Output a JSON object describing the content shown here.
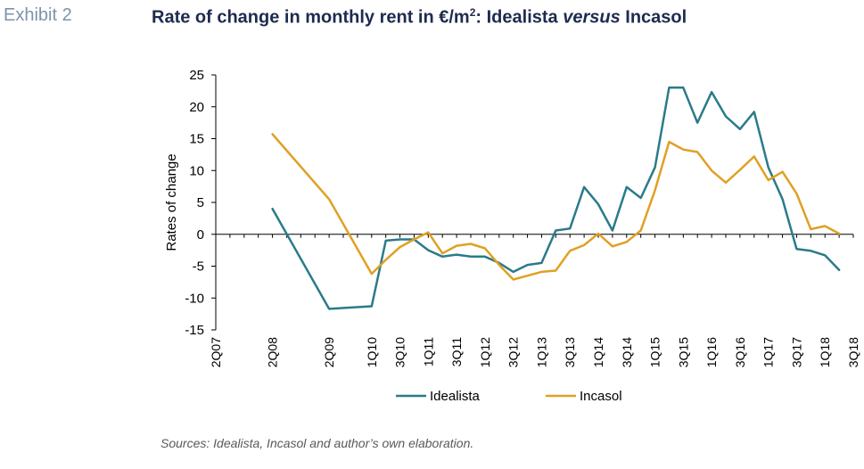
{
  "header": {
    "exhibit": "Exhibit 2",
    "title_pre": "Rate of change in monthly rent in €/m",
    "title_sup": "2",
    "title_mid": ": Idealista ",
    "title_em": "versus",
    "title_post": " Incasol"
  },
  "sources": "Sources: Idealista, Incasol and author’s own elaboration.",
  "chart_data": {
    "type": "line",
    "ylabel": "Rates of change",
    "ylim": [
      -15,
      25
    ],
    "yticks": [
      -15,
      -10,
      -5,
      0,
      5,
      10,
      15,
      20,
      25
    ],
    "tick_labels": [
      "2Q07",
      "2Q08",
      "2Q09",
      "1Q10",
      "3Q10",
      "1Q11",
      "3Q11",
      "1Q12",
      "3Q12",
      "1Q13",
      "3Q13",
      "1Q14",
      "3Q14",
      "1Q15",
      "3Q15",
      "1Q16",
      "3Q16",
      "1Q17",
      "3Q17",
      "1Q18",
      "3Q18"
    ],
    "x": [
      "2Q07",
      "3Q07",
      "4Q07",
      "1Q08",
      "2Q08",
      "3Q08",
      "4Q08",
      "1Q09",
      "2Q09",
      "3Q09",
      "4Q09",
      "1Q10",
      "2Q10",
      "3Q10",
      "4Q10",
      "1Q11",
      "2Q11",
      "3Q11",
      "4Q11",
      "1Q12",
      "2Q12",
      "3Q12",
      "4Q12",
      "1Q13",
      "2Q13",
      "3Q13",
      "4Q13",
      "1Q14",
      "2Q14",
      "3Q14",
      "4Q14",
      "1Q15",
      "2Q15",
      "3Q15",
      "4Q15",
      "1Q16",
      "2Q16",
      "3Q16",
      "4Q16",
      "1Q17",
      "2Q17",
      "3Q17",
      "4Q17",
      "1Q18",
      "2Q18",
      "3Q18"
    ],
    "series": [
      {
        "name": "Idealista",
        "color": "#2a7b8a",
        "values": [
          null,
          null,
          null,
          null,
          4.0,
          null,
          null,
          null,
          -11.7,
          null,
          null,
          -11.3,
          -1.0,
          -0.8,
          -0.8,
          -2.5,
          -3.5,
          -3.2,
          -3.5,
          -3.5,
          -4.5,
          -5.9,
          -4.8,
          -4.5,
          0.6,
          0.9,
          7.4,
          4.7,
          0.6,
          7.4,
          5.7,
          10.5,
          23.0,
          23.0,
          17.5,
          22.3,
          18.5,
          16.5,
          19.2,
          10.5,
          5.5,
          -2.3,
          -2.6,
          -3.3,
          -5.6,
          null
        ]
      },
      {
        "name": "Incasol",
        "color": "#e0a024",
        "values": [
          null,
          null,
          null,
          null,
          15.7,
          null,
          null,
          null,
          5.5,
          null,
          null,
          -6.2,
          -4.0,
          -2.0,
          -0.8,
          0.3,
          -3.0,
          -1.8,
          -1.5,
          -2.2,
          -4.8,
          -7.1,
          -6.5,
          -5.9,
          -5.7,
          -2.6,
          -1.7,
          0.1,
          -1.9,
          -1.2,
          0.6,
          6.9,
          14.5,
          13.3,
          12.9,
          10.0,
          8.1,
          10.1,
          12.2,
          8.5,
          9.8,
          6.4,
          0.8,
          1.3,
          0.1,
          null
        ]
      }
    ],
    "grid": false,
    "legend": "bottom-center"
  }
}
